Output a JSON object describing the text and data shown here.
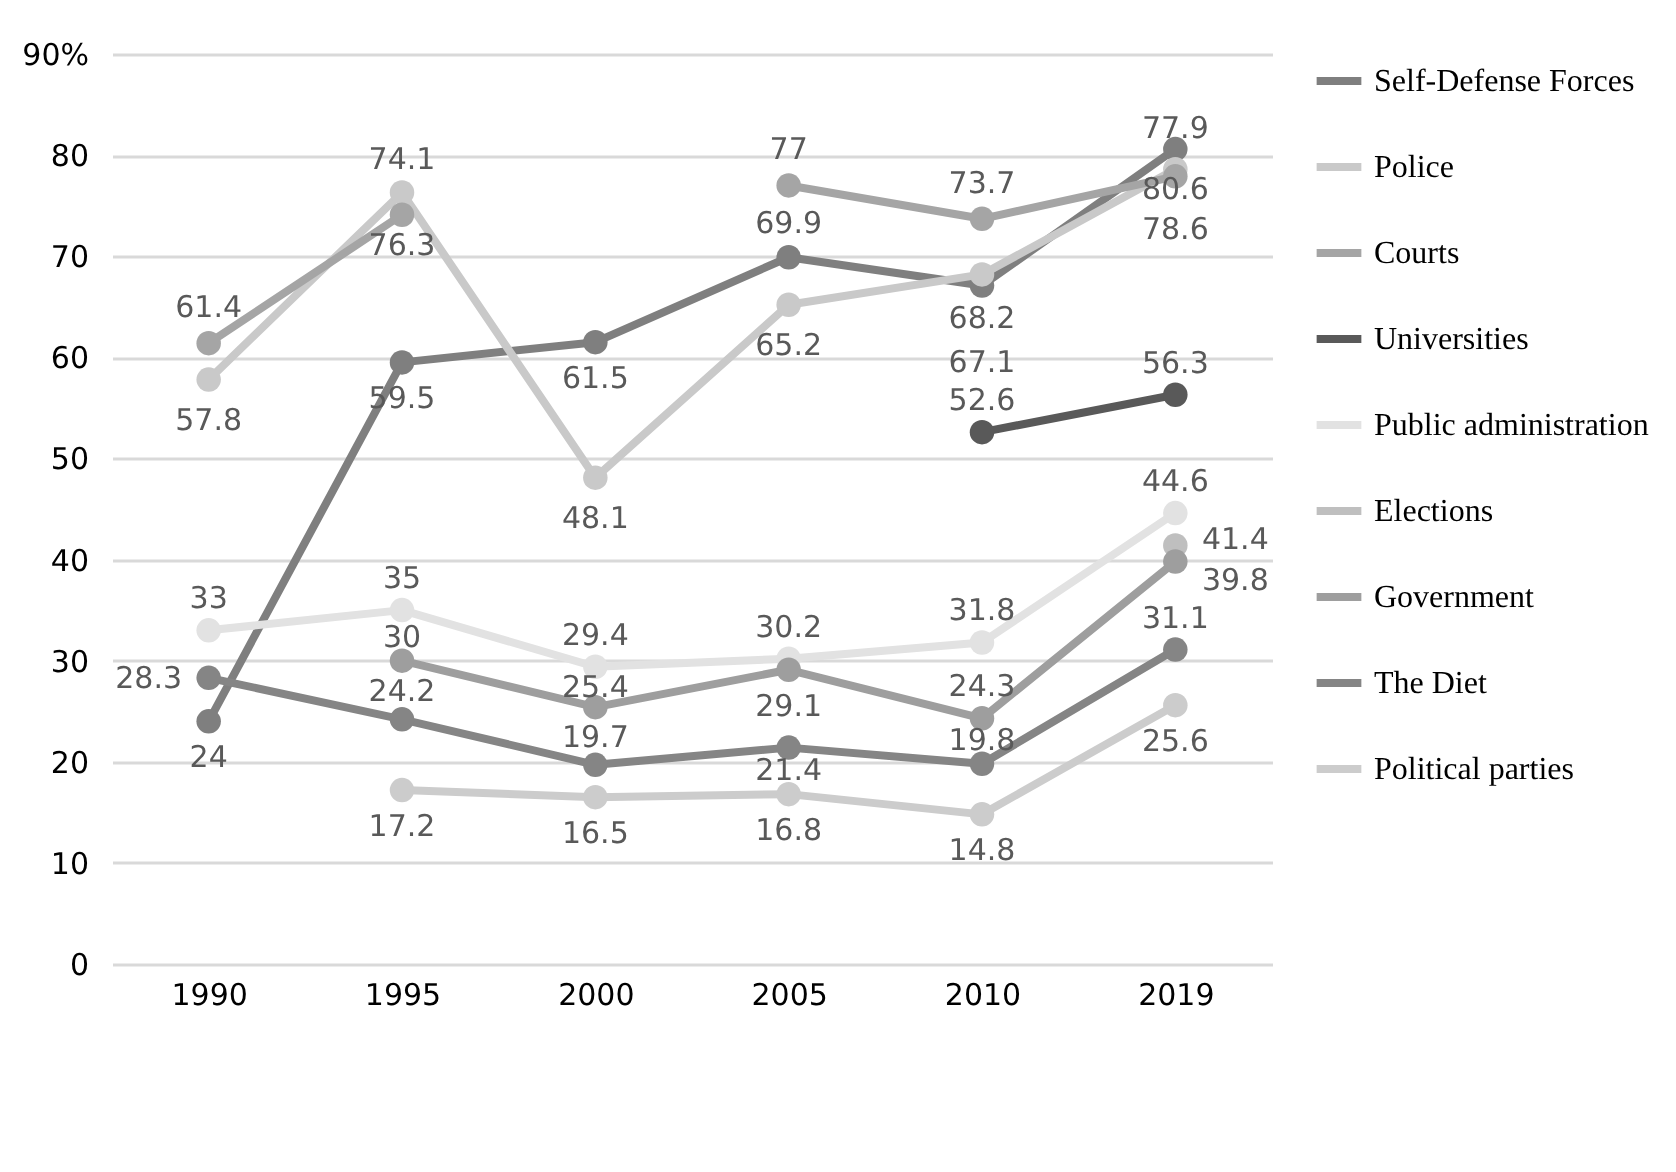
{
  "chart_data": {
    "type": "line",
    "categories": [
      "1990",
      "1995",
      "2000",
      "2005",
      "2010",
      "2019"
    ],
    "ylim": [
      0,
      90
    ],
    "yticks": [
      0,
      10,
      20,
      30,
      40,
      50,
      60,
      70,
      80,
      {
        "value": 90,
        "label": "90%"
      }
    ],
    "grid": "y",
    "legend": "right",
    "marker": "circle",
    "line_style": "solid",
    "data_labels": true,
    "series": [
      {
        "name": "Self-Defense Forces",
        "color": "#7f7f7f",
        "values": [
          24,
          59.5,
          61.5,
          69.9,
          67.1,
          80.6
        ]
      },
      {
        "name": "Police",
        "color": "#c9c9c9",
        "values": [
          57.8,
          76.3,
          48.1,
          65.2,
          68.2,
          78.6
        ]
      },
      {
        "name": "Courts",
        "color": "#a5a5a5",
        "values": [
          61.4,
          74.1,
          null,
          77,
          73.7,
          77.9
        ]
      },
      {
        "name": "Universities",
        "color": "#595959",
        "values": [
          null,
          null,
          null,
          null,
          52.6,
          56.3
        ]
      },
      {
        "name": "Public administration",
        "color": "#e2e2e2",
        "values": [
          33,
          35,
          29.4,
          30.2,
          31.8,
          44.6
        ]
      },
      {
        "name": "Elections",
        "color": "#bfbfbf",
        "values": [
          null,
          null,
          null,
          null,
          null,
          41.4
        ]
      },
      {
        "name": "Government",
        "color": "#9e9e9e",
        "values": [
          null,
          30,
          25.4,
          29.1,
          24.3,
          39.8
        ]
      },
      {
        "name": "The Diet",
        "color": "#858585",
        "values": [
          28.3,
          24.2,
          19.7,
          21.4,
          19.8,
          31.1
        ]
      },
      {
        "name": "Political parties",
        "color": "#cccccc",
        "values": [
          null,
          17.2,
          16.5,
          16.8,
          14.8,
          25.6
        ]
      }
    ]
  }
}
